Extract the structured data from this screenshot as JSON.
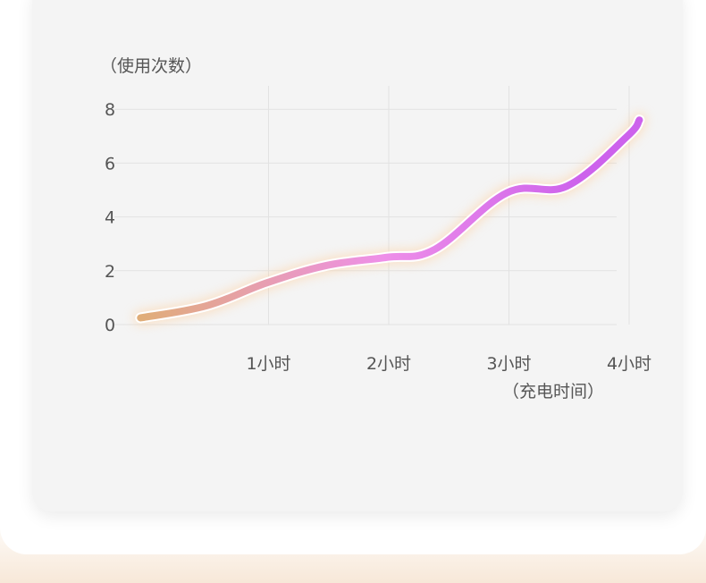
{
  "chart_data": {
    "type": "line",
    "ylabel": "（使用次数）",
    "xlabel": "（充电时间）",
    "x": [
      0,
      1,
      2,
      3,
      4
    ],
    "categories": [
      "",
      "1小时",
      "2小时",
      "3小时",
      "4小时"
    ],
    "y_ticks": [
      "0",
      "2",
      "4",
      "6",
      "8"
    ],
    "ylim": [
      0,
      8
    ],
    "xlim": [
      -0.05,
      4.2
    ],
    "series": [
      {
        "x": [
          -0.05,
          0.5,
          1,
          1.5,
          2,
          2.4,
          3,
          3.5,
          4,
          4.1
        ],
        "values": [
          0.25,
          0.7,
          1.55,
          2.2,
          2.5,
          2.8,
          4.9,
          5.15,
          7.0,
          7.6
        ]
      }
    ],
    "grid": true,
    "line_gradient": [
      "#e0ad78",
      "#ee8fe8",
      "#cd62ec"
    ],
    "glow_color": "#ffcf9c"
  }
}
